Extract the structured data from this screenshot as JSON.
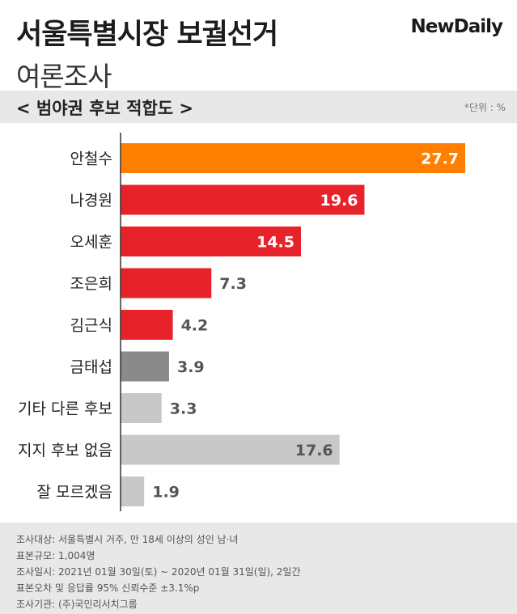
{
  "header": {
    "title": "서울특별시장 보궐선거",
    "subtitle": "여론조사",
    "logo": "NewDaily"
  },
  "section": {
    "title": "< 범야권 후보 적합도 >",
    "unit": "*단위 : %"
  },
  "colors": {
    "orange": "#ff8000",
    "red": "#e8222a",
    "darkgray": "#8a8a8a",
    "lightgray": "#c8c8c8"
  },
  "chart_data": {
    "type": "bar",
    "orientation": "horizontal",
    "categories": [
      "안철수",
      "나경원",
      "오세훈",
      "조은희",
      "김근식",
      "금태섭",
      "기타 다른 후보",
      "지지 후보 없음",
      "잘 모르겠음"
    ],
    "values": [
      27.7,
      19.6,
      14.5,
      7.3,
      4.2,
      3.9,
      3.3,
      17.6,
      1.9
    ],
    "bar_colors": [
      "#ff8000",
      "#e8222a",
      "#e8222a",
      "#e8222a",
      "#e8222a",
      "#8a8a8a",
      "#c8c8c8",
      "#c8c8c8",
      "#c8c8c8"
    ],
    "value_label_inside": [
      true,
      true,
      true,
      false,
      false,
      false,
      false,
      true,
      false
    ],
    "xlim": [
      0,
      30
    ],
    "grid": false
  },
  "footer": {
    "lines": [
      "조사대상: 서울특별시 거주, 만 18세 이상의 성인 남·녀",
      "표본규모: 1,004명",
      "조사일시: 2021년 01월 30일(토) ~ 2020년 01월 31일(일), 2일간",
      "표본오차 및 응답률 95% 신뢰수준 ±3.1%p",
      "조사기관: (주)국민리서치그룹"
    ]
  }
}
